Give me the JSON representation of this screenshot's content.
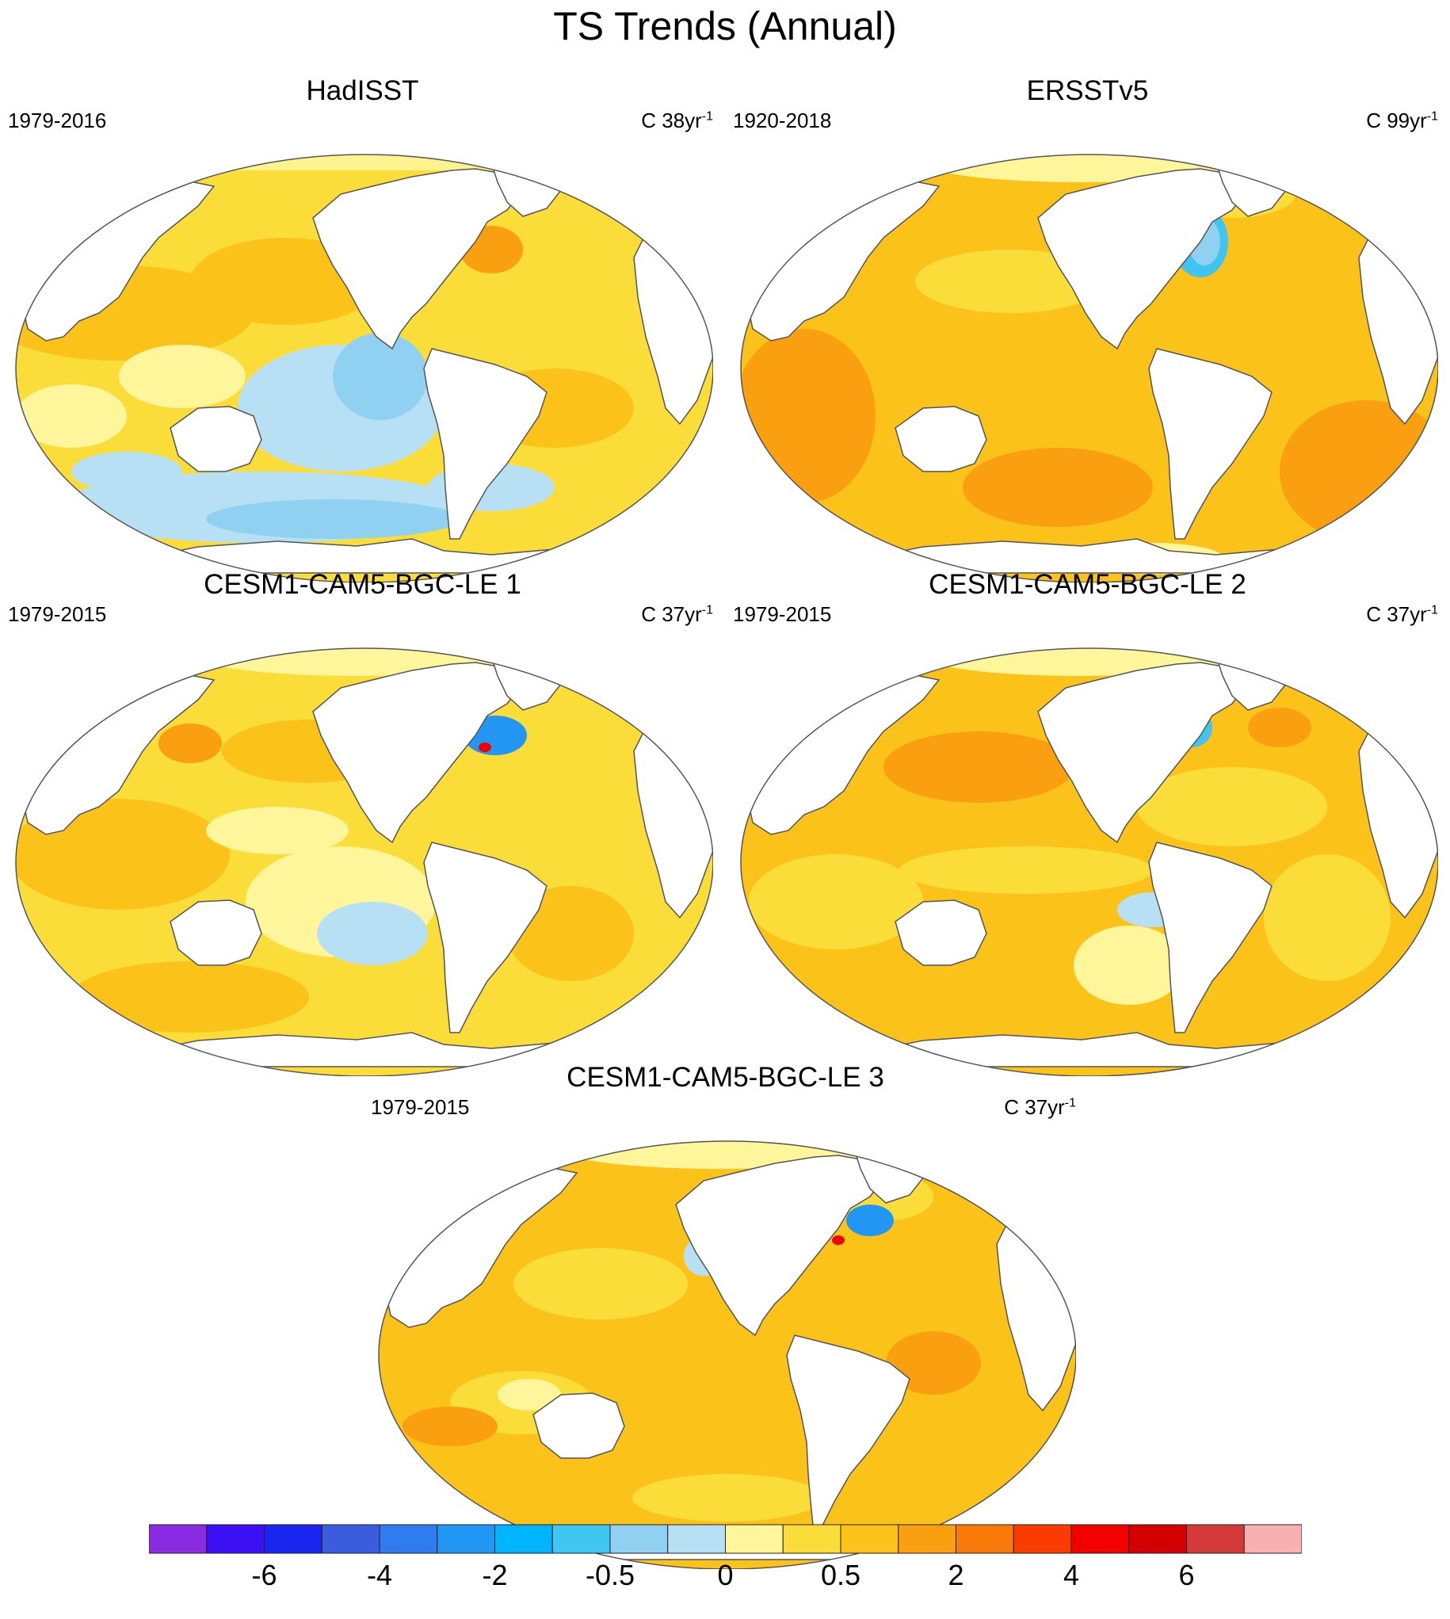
{
  "title": "TS Trends (Annual)",
  "panels": [
    {
      "title": "HadISST",
      "period": "1979-2016",
      "units_prefix": "C 38yr",
      "units_exp": "-1",
      "pattern": "hadisst"
    },
    {
      "title": "ERSSTv5",
      "period": "1920-2018",
      "units_prefix": "C 99yr",
      "units_exp": "-1",
      "pattern": "ersst"
    },
    {
      "title": "CESM1-CAM5-BGC-LE 1",
      "period": "1979-2015",
      "units_prefix": "C 37yr",
      "units_exp": "-1",
      "pattern": "le1"
    },
    {
      "title": "CESM1-CAM5-BGC-LE 2",
      "period": "1979-2015",
      "units_prefix": "C 37yr",
      "units_exp": "-1",
      "pattern": "le2"
    },
    {
      "title": "CESM1-CAM5-BGC-LE 3",
      "period": "1979-2015",
      "units_prefix": "C 37yr",
      "units_exp": "-1",
      "pattern": "le3"
    }
  ],
  "colorbar": {
    "colors": [
      "#8a2be2",
      "#3b10f5",
      "#1a26f0",
      "#3a5de0",
      "#2f7bf0",
      "#2196f3",
      "#00b4ff",
      "#40c4f0",
      "#90d0f0",
      "#b8e0f5",
      "#fff59a",
      "#fbdd3a",
      "#fbc21a",
      "#fa9f10",
      "#f97a08",
      "#fa3c00",
      "#f50000",
      "#d40000",
      "#d43a3a",
      "#f8b0b0"
    ],
    "tick_labels": [
      "-6",
      "-4",
      "-2",
      "-0.5",
      "0",
      "0.5",
      "2",
      "4",
      "6"
    ],
    "tick_boundary_index": [
      2,
      4,
      6,
      8,
      10,
      12,
      14,
      16,
      18
    ]
  }
}
